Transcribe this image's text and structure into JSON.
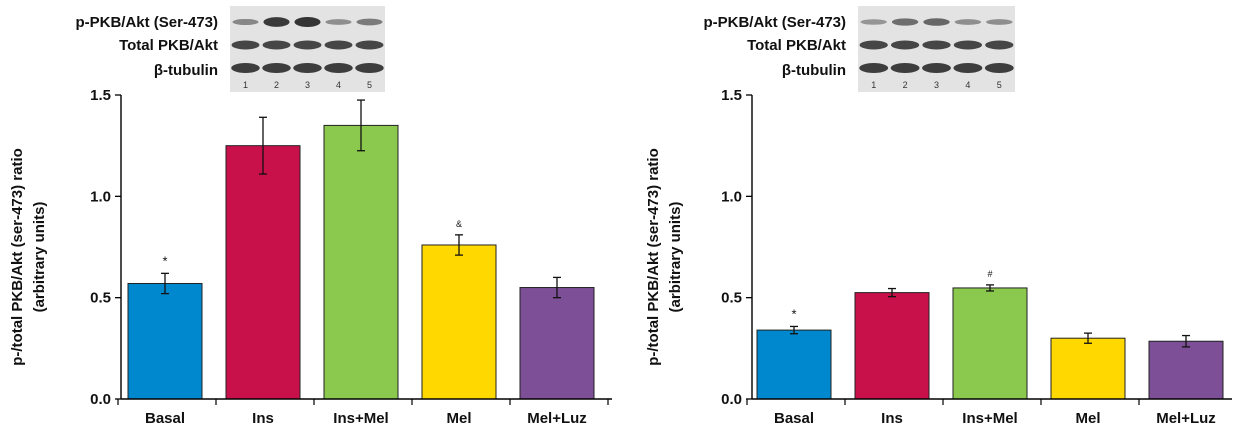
{
  "colors": {
    "basal": "#0088cf",
    "ins": "#c8104a",
    "ins_mel": "#8bc84e",
    "mel": "#ffd800",
    "mel_luz": "#7c4f97",
    "blot_bg": "#e3e3e3",
    "band": "#2a2a2a"
  },
  "chart_data": [
    {
      "type": "bar",
      "title": "",
      "xlabel": "",
      "ylabel_lines": [
        "p-/total PKB/Akt (ser-473) ratio",
        "(arbitrary units)"
      ],
      "categories": [
        "Basal",
        "Ins",
        "Ins+Mel",
        "Mel",
        "Mel+Luz"
      ],
      "values": [
        0.57,
        1.25,
        1.35,
        0.76,
        0.55
      ],
      "errors": [
        0.05,
        0.14,
        0.125,
        0.05,
        0.05
      ],
      "significance": [
        "*",
        "",
        "",
        "&",
        ""
      ],
      "ylim": [
        0,
        1.5
      ],
      "yticks": [
        0,
        0.5,
        1.0,
        1.5
      ],
      "ytick_labels": [
        "0.0",
        "0.5",
        "1.0",
        "1.5"
      ],
      "grid": false,
      "blot": {
        "row_labels": [
          "p-PKB/Akt (Ser-473)",
          "Total PKB/Akt",
          "β-tubulin"
        ],
        "lane_labels": [
          "1",
          "2",
          "3",
          "4",
          "5"
        ],
        "phospho_intensity": [
          0.35,
          0.95,
          1.0,
          0.3,
          0.45
        ]
      }
    },
    {
      "type": "bar",
      "title": "",
      "xlabel": "",
      "ylabel_lines": [
        "p-/total PKB/Akt (ser-473) ratio",
        "(arbitrary units)"
      ],
      "categories": [
        "Basal",
        "Ins",
        "Ins+Mel",
        "Mel",
        "Mel+Luz"
      ],
      "values": [
        0.34,
        0.525,
        0.548,
        0.3,
        0.285
      ],
      "errors": [
        0.018,
        0.02,
        0.015,
        0.025,
        0.028
      ],
      "significance": [
        "*",
        "",
        "#",
        "",
        ""
      ],
      "ylim": [
        0,
        1.5
      ],
      "yticks": [
        0,
        0.5,
        1.0,
        1.5
      ],
      "ytick_labels": [
        "0.0",
        "0.5",
        "1.0",
        "1.5"
      ],
      "grid": false,
      "blot": {
        "row_labels": [
          "p-PKB/Akt (Ser-473)",
          "Total PKB/Akt",
          "β-tubulin"
        ],
        "lane_labels": [
          "1",
          "2",
          "3",
          "4",
          "5"
        ],
        "phospho_intensity": [
          0.25,
          0.55,
          0.6,
          0.3,
          0.3
        ]
      }
    }
  ]
}
